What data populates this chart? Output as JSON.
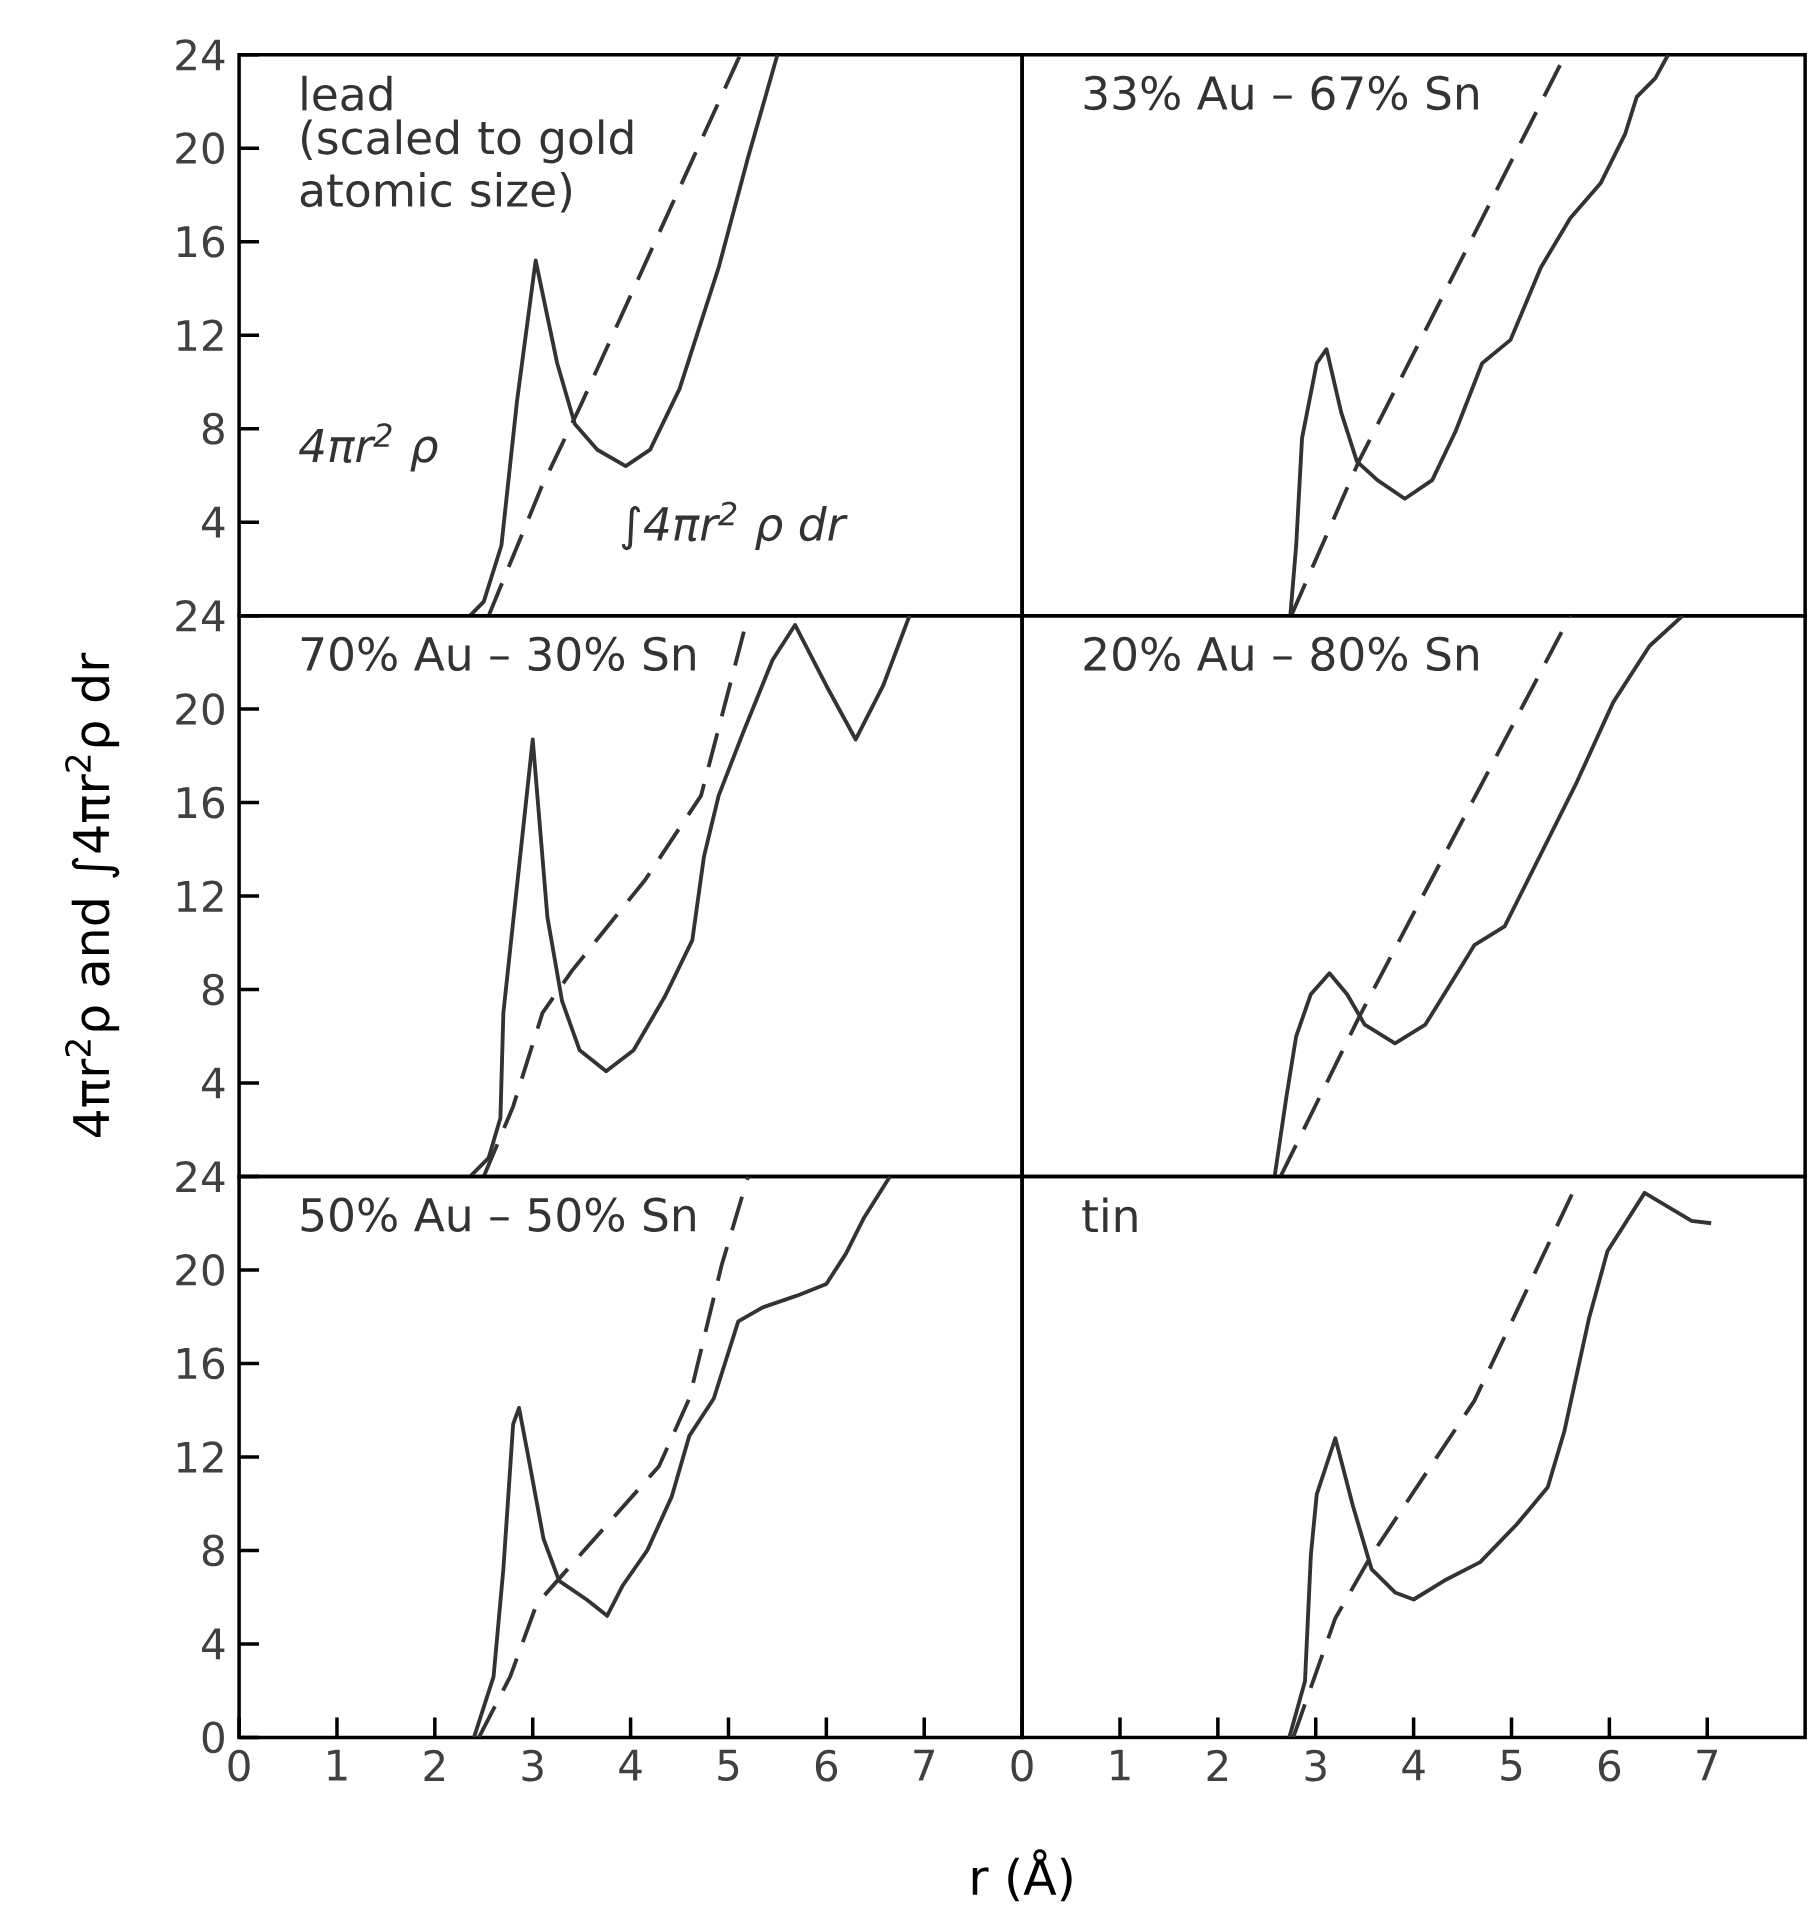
{
  "chart_data": [
    {
      "type": "line",
      "title": "lead",
      "subtitle": "(scaled to gold atomic size)",
      "xlim": [
        0,
        8
      ],
      "ylim": [
        0,
        24
      ],
      "yticks": [
        4,
        8,
        12,
        16,
        20,
        24
      ],
      "tick_labels": "y",
      "annotations": [
        "4πr$^{2}$ ρ",
        "∫4πr$^{2}$ ρ dr"
      ],
      "series": [
        {
          "color": "#333333",
          "line_style": "solid",
          "x": [
            2.36,
            2.5,
            2.68,
            2.84,
            3.03,
            3.25,
            3.43,
            3.66,
            3.95,
            4.2,
            4.5,
            4.9,
            5.2,
            5.5
          ],
          "values": [
            0,
            0.6,
            3,
            9.2,
            15.2,
            10.8,
            8.2,
            7.1,
            6.4,
            7.1,
            9.7,
            14.9,
            19.6,
            24
          ]
        },
        {
          "color": "#333333",
          "line_style": "dashed",
          "x": [
            2.55,
            3.09,
            3.49,
            5.12
          ],
          "values": [
            0,
            5.5,
            9,
            24
          ]
        }
      ]
    },
    {
      "type": "line",
      "title": "33% Au – 67% Sn",
      "xlim": [
        0,
        8
      ],
      "ylim": [
        0,
        24
      ],
      "tick_labels": false,
      "series": [
        {
          "color": "#333333",
          "line_style": "solid",
          "x": [
            2.74,
            2.8,
            2.86,
            3.01,
            3.11,
            3.26,
            3.42,
            3.63,
            3.91,
            4.19,
            4.43,
            4.7,
            4.99,
            5.3,
            5.6,
            5.91,
            6.16,
            6.28,
            6.47,
            6.6
          ],
          "values": [
            0,
            3,
            7.6,
            10.8,
            11.4,
            8.7,
            6.6,
            5.8,
            5,
            5.8,
            7.9,
            10.8,
            11.8,
            14.9,
            17,
            18.5,
            20.6,
            22.2,
            23,
            24
          ]
        },
        {
          "color": "#333333",
          "line_style": "dashed",
          "x": [
            2.75,
            3.44,
            5.55
          ],
          "values": [
            0,
            6.6,
            24
          ]
        }
      ]
    },
    {
      "type": "line",
      "title": "70% Au – 30% Sn",
      "ylabel": "4πr$^{2}$ρ and ∫4πr$^{2}$ρ dr",
      "xlim": [
        0,
        8
      ],
      "ylim": [
        0,
        24
      ],
      "yticks": [
        4,
        8,
        12,
        16,
        20,
        24
      ],
      "tick_labels": "y",
      "series": [
        {
          "color": "#333333",
          "line_style": "solid",
          "x": [
            2.36,
            2.55,
            2.67,
            2.7,
            3.0,
            3.15,
            3.3,
            3.48,
            3.75,
            4.03,
            4.35,
            4.63,
            4.75,
            4.9,
            5.15,
            5.45,
            5.68,
            6.0,
            6.3,
            6.58,
            6.85
          ],
          "values": [
            0,
            0.8,
            2.5,
            7,
            18.7,
            11.1,
            7.5,
            5.4,
            4.5,
            5.4,
            7.7,
            10.1,
            13.7,
            16.3,
            19,
            22.1,
            23.6,
            21,
            18.7,
            21,
            24
          ]
        },
        {
          "color": "#333333",
          "line_style": "dashed",
          "x": [
            2.5,
            2.8,
            3.1,
            3.4,
            4.15,
            4.72,
            5.2
          ],
          "values": [
            0,
            3,
            7,
            8.8,
            12.7,
            16.3,
            24
          ]
        }
      ]
    },
    {
      "type": "line",
      "title": "20% Au – 80% Sn",
      "xlim": [
        0,
        8
      ],
      "ylim": [
        0,
        24
      ],
      "tick_labels": false,
      "series": [
        {
          "color": "#333333",
          "line_style": "solid",
          "x": [
            2.58,
            2.7,
            2.8,
            2.95,
            3.14,
            3.32,
            3.5,
            3.81,
            4.12,
            4.43,
            4.62,
            4.93,
            5.3,
            5.67,
            6.04,
            6.41,
            6.75
          ],
          "values": [
            0,
            3.4,
            6,
            7.8,
            8.7,
            7.8,
            6.5,
            5.7,
            6.5,
            8.6,
            9.9,
            10.7,
            13.8,
            16.9,
            20.3,
            22.7,
            24
          ]
        },
        {
          "color": "#333333",
          "line_style": "dashed",
          "x": [
            2.64,
            3.44,
            5.6
          ],
          "values": [
            0,
            6.8,
            24
          ]
        }
      ]
    },
    {
      "type": "line",
      "title": "50% Au – 50% Sn",
      "xlabel": "r (Å)",
      "xlim": [
        0,
        8
      ],
      "ylim": [
        0,
        24
      ],
      "xticks": [
        0,
        1,
        2,
        3,
        4,
        5,
        6,
        7
      ],
      "yticks": [
        0,
        4,
        8,
        12,
        16,
        20,
        24
      ],
      "series": [
        {
          "color": "#333333",
          "line_style": "solid",
          "x": [
            2.4,
            2.6,
            2.7,
            2.8,
            2.86,
            2.96,
            3.11,
            3.27,
            3.55,
            3.76,
            3.92,
            4.17,
            4.42,
            4.6,
            4.85,
            5.1,
            5.35,
            5.7,
            6.0,
            6.2,
            6.38,
            6.65
          ],
          "values": [
            0,
            2.6,
            7.2,
            13.4,
            14.1,
            11.9,
            8.5,
            6.7,
            5.9,
            5.2,
            6.5,
            8,
            10.3,
            12.9,
            14.5,
            17.8,
            18.4,
            18.9,
            19.4,
            20.7,
            22.2,
            24
          ]
        },
        {
          "color": "#333333",
          "line_style": "dashed",
          "x": [
            2.45,
            2.77,
            3.04,
            3.42,
            4.29,
            4.6,
            4.93,
            5.2
          ],
          "values": [
            0,
            2.6,
            5.7,
            7.5,
            11.6,
            14.5,
            20.2,
            24
          ]
        }
      ]
    },
    {
      "type": "line",
      "title": "tin",
      "xlim": [
        0,
        8
      ],
      "ylim": [
        0,
        24
      ],
      "xticks": [
        0,
        1,
        2,
        3,
        4,
        5,
        6,
        7
      ],
      "tick_labels": "x",
      "series": [
        {
          "color": "#333333",
          "line_style": "solid",
          "x": [
            2.73,
            2.89,
            2.95,
            3.01,
            3.2,
            3.38,
            3.57,
            3.81,
            4.0,
            4.31,
            4.68,
            5.05,
            5.37,
            5.54,
            5.79,
            5.98,
            6.36,
            6.6,
            6.84,
            7.04
          ],
          "values": [
            0,
            2.4,
            7.8,
            10.4,
            12.8,
            9.9,
            7.2,
            6.2,
            5.9,
            6.7,
            7.5,
            9.1,
            10.7,
            13.1,
            17.9,
            20.8,
            23.3,
            22.7,
            22.1,
            22.0
          ]
        },
        {
          "color": "#333333",
          "line_style": "dashed",
          "x": [
            2.77,
            3.2,
            3.57,
            4.62,
            5.67
          ],
          "values": [
            0,
            5.1,
            7.8,
            14.4,
            23.7
          ]
        }
      ]
    }
  ]
}
